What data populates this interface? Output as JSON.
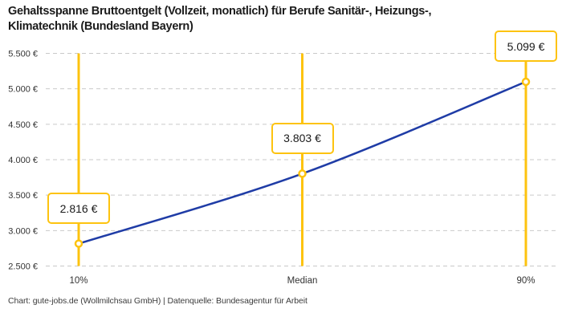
{
  "header": {
    "title_line1": "Gehaltsspanne Bruttoentgelt (Vollzeit, monatlich) für Berufe Sanitär-, Heizungs-,",
    "title_line2": "Klimatechnik (Bundesland Bayern)"
  },
  "footer": {
    "text": "Chart: gute-jobs.de (Wollmilchsau GmbH) | Datenquelle: Bundesagentur für Arbeit"
  },
  "chart_data": {
    "type": "line",
    "title": "Gehaltsspanne Bruttoentgelt (Vollzeit, monatlich) für Berufe Sanitär-, Heizungs-, Klimatechnik (Bundesland Bayern)",
    "x_categories": [
      "10%",
      "Median",
      "90%"
    ],
    "values": [
      2816,
      3803,
      5099
    ],
    "point_labels": [
      "2.816 €",
      "3.803 €",
      "5.099 €"
    ],
    "y_tick_values": [
      2500,
      3000,
      3500,
      4000,
      4500,
      5000,
      5500
    ],
    "y_tick_labels": [
      "2.500 €",
      "3.000 €",
      "3.500 €",
      "4.000 €",
      "4.500 €",
      "5.000 €",
      "5.500 €"
    ],
    "ylim": [
      2500,
      5500
    ],
    "grid": "horizontal-dashed",
    "legend": "none",
    "colors": {
      "line": "#1f3ca6",
      "accent_yellow": "#fdc30f",
      "grid": "#c9c9c9",
      "marker_fill": "#ffffff",
      "axis_text": "#333333"
    }
  }
}
